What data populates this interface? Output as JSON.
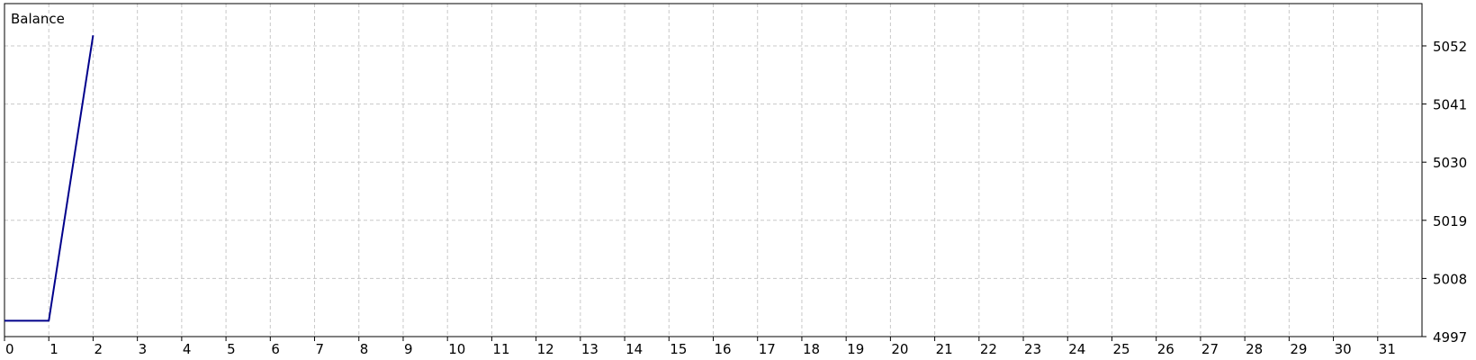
{
  "chart_data": {
    "type": "line",
    "series": [
      {
        "name": "Balance",
        "color": "#00008b",
        "x": [
          0,
          1,
          2
        ],
        "y": [
          5000,
          5000,
          5054
        ]
      }
    ],
    "xlim": [
      0,
      32
    ],
    "x_ticks": [
      0,
      1,
      2,
      3,
      4,
      5,
      6,
      7,
      8,
      9,
      10,
      11,
      12,
      13,
      14,
      15,
      16,
      17,
      18,
      19,
      20,
      21,
      22,
      23,
      24,
      25,
      26,
      27,
      28,
      29,
      30,
      31
    ],
    "ylim": [
      4997,
      5060
    ],
    "y_ticks": [
      4997,
      5008,
      5019,
      5030,
      5041,
      5052
    ],
    "grid": true,
    "legend": "top-left",
    "y_axis_position": "right"
  }
}
